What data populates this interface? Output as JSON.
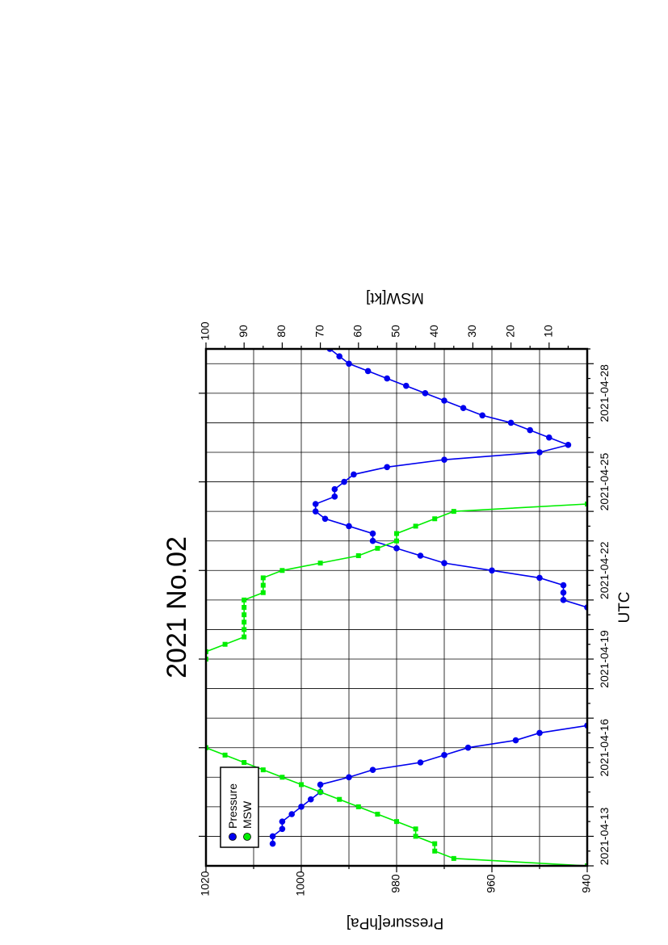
{
  "chart_data": {
    "type": "line",
    "title": "2021 No.02",
    "xlabel": "UTC",
    "ylabel_left": "Pressure[hPa]",
    "ylabel_right": "MSW[kt]",
    "xlim": [
      "2021-04-12 00:00",
      "2021-04-29 12:00"
    ],
    "ylim_left": [
      940,
      1020
    ],
    "ylim_right": [
      0,
      100
    ],
    "x_tick_labels": [
      "2021-04-13",
      "2021-04-16",
      "2021-04-19",
      "2021-04-22",
      "2021-04-25",
      "2021-04-28"
    ],
    "y_left_tick_labels": [
      "1020",
      "1000",
      "980",
      "960",
      "940"
    ],
    "y_right_tick_labels": [
      "100",
      "90",
      "80",
      "70",
      "60",
      "50",
      "40",
      "30",
      "20",
      "10"
    ],
    "grid": true,
    "rotated": true,
    "legend": {
      "position": "top-left",
      "entries": [
        {
          "name": "Pressure",
          "color": "#0000ee"
        },
        {
          "name": "MSW",
          "color": "#00ee00"
        }
      ]
    },
    "series": [
      {
        "name": "Pressure",
        "axis": "left",
        "color": "#0000ee",
        "marker": "circle",
        "points": [
          [
            "2021-04-12 18:00",
            1006
          ],
          [
            "2021-04-13 00:00",
            1006
          ],
          [
            "2021-04-13 06:00",
            1004
          ],
          [
            "2021-04-13 12:00",
            1004
          ],
          [
            "2021-04-13 18:00",
            1002
          ],
          [
            "2021-04-14 00:00",
            1000
          ],
          [
            "2021-04-14 06:00",
            998
          ],
          [
            "2021-04-14 12:00",
            996
          ],
          [
            "2021-04-14 18:00",
            996
          ],
          [
            "2021-04-15 00:00",
            990
          ],
          [
            "2021-04-15 06:00",
            985
          ],
          [
            "2021-04-15 12:00",
            975
          ],
          [
            "2021-04-15 18:00",
            970
          ],
          [
            "2021-04-16 00:00",
            965
          ],
          [
            "2021-04-16 06:00",
            955
          ],
          [
            "2021-04-16 12:00",
            950
          ],
          [
            "2021-04-16 18:00",
            940
          ],
          [
            "2021-04-20 18:00",
            940
          ],
          [
            "2021-04-21 00:00",
            945
          ],
          [
            "2021-04-21 06:00",
            945
          ],
          [
            "2021-04-21 12:00",
            945
          ],
          [
            "2021-04-21 18:00",
            950
          ],
          [
            "2021-04-22 00:00",
            960
          ],
          [
            "2021-04-22 06:00",
            970
          ],
          [
            "2021-04-22 12:00",
            975
          ],
          [
            "2021-04-22 18:00",
            980
          ],
          [
            "2021-04-23 00:00",
            985
          ],
          [
            "2021-04-23 06:00",
            985
          ],
          [
            "2021-04-23 12:00",
            990
          ],
          [
            "2021-04-23 18:00",
            995
          ],
          [
            "2021-04-24 00:00",
            997
          ],
          [
            "2021-04-24 06:00",
            997
          ],
          [
            "2021-04-24 12:00",
            993
          ],
          [
            "2021-04-24 18:00",
            993
          ],
          [
            "2021-04-25 00:00",
            991
          ],
          [
            "2021-04-25 06:00",
            989
          ],
          [
            "2021-04-25 12:00",
            982
          ],
          [
            "2021-04-25 18:00",
            970
          ],
          [
            "2021-04-26 00:00",
            950
          ],
          [
            "2021-04-26 06:00",
            944
          ],
          [
            "2021-04-26 12:00",
            948
          ],
          [
            "2021-04-26 18:00",
            952
          ],
          [
            "2021-04-27 00:00",
            956
          ],
          [
            "2021-04-27 06:00",
            962
          ],
          [
            "2021-04-27 12:00",
            966
          ],
          [
            "2021-04-27 18:00",
            970
          ],
          [
            "2021-04-28 00:00",
            974
          ],
          [
            "2021-04-28 06:00",
            978
          ],
          [
            "2021-04-28 12:00",
            982
          ],
          [
            "2021-04-28 18:00",
            986
          ],
          [
            "2021-04-29 00:00",
            990
          ],
          [
            "2021-04-29 06:00",
            992
          ],
          [
            "2021-04-29 12:00",
            994
          ],
          [
            "2021-04-29 18:00",
            996
          ],
          [
            "2021-04-30 00:00",
            998
          ]
        ]
      },
      {
        "name": "MSW",
        "axis": "right",
        "color": "#00ee00",
        "marker": "square",
        "points": [
          [
            "2021-04-12 00:00",
            0
          ],
          [
            "2021-04-12 06:00",
            35
          ],
          [
            "2021-04-12 12:00",
            40
          ],
          [
            "2021-04-12 18:00",
            40
          ],
          [
            "2021-04-13 00:00",
            45
          ],
          [
            "2021-04-13 06:00",
            45
          ],
          [
            "2021-04-13 12:00",
            50
          ],
          [
            "2021-04-13 18:00",
            55
          ],
          [
            "2021-04-14 00:00",
            60
          ],
          [
            "2021-04-14 06:00",
            65
          ],
          [
            "2021-04-14 12:00",
            70
          ],
          [
            "2021-04-14 18:00",
            75
          ],
          [
            "2021-04-15 00:00",
            80
          ],
          [
            "2021-04-15 06:00",
            85
          ],
          [
            "2021-04-15 12:00",
            90
          ],
          [
            "2021-04-15 18:00",
            95
          ],
          [
            "2021-04-16 00:00",
            100
          ],
          [
            "2021-04-19 00:00",
            100
          ],
          [
            "2021-04-19 06:00",
            100
          ],
          [
            "2021-04-19 12:00",
            95
          ],
          [
            "2021-04-19 18:00",
            90
          ],
          [
            "2021-04-20 00:00",
            90
          ],
          [
            "2021-04-20 06:00",
            90
          ],
          [
            "2021-04-20 12:00",
            90
          ],
          [
            "2021-04-20 18:00",
            90
          ],
          [
            "2021-04-21 00:00",
            90
          ],
          [
            "2021-04-21 06:00",
            85
          ],
          [
            "2021-04-21 12:00",
            85
          ],
          [
            "2021-04-21 18:00",
            85
          ],
          [
            "2021-04-22 00:00",
            80
          ],
          [
            "2021-04-22 06:00",
            70
          ],
          [
            "2021-04-22 12:00",
            60
          ],
          [
            "2021-04-22 18:00",
            55
          ],
          [
            "2021-04-23 00:00",
            50
          ],
          [
            "2021-04-23 06:00",
            50
          ],
          [
            "2021-04-23 12:00",
            45
          ],
          [
            "2021-04-23 18:00",
            40
          ],
          [
            "2021-04-24 00:00",
            35
          ],
          [
            "2021-04-24 06:00",
            0
          ]
        ]
      }
    ]
  }
}
